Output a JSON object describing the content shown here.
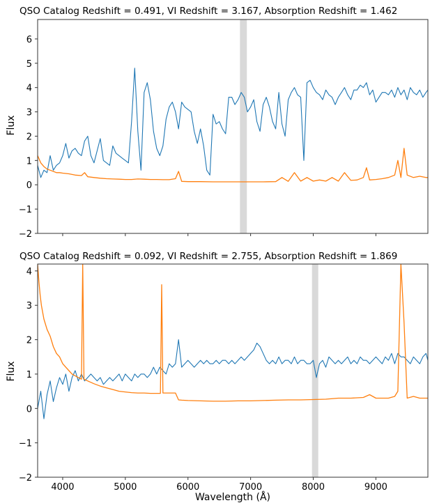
{
  "figure": {
    "xlabel": "Wavelength (Å)",
    "colors": {
      "flux": "#1f77b4",
      "error": "#ff7f0e",
      "band": "#d9d9d9"
    }
  },
  "chart_data": [
    {
      "type": "line",
      "title": "QSO Catalog Redshift = 0.491,   VI Redshift = 3.167,   Absorption Redshift = 1.462",
      "xlabel": "",
      "ylabel": "Flux",
      "xlim": [
        3600,
        9830
      ],
      "ylim": [
        -2,
        6.8
      ],
      "yticks": [
        -2,
        -1,
        0,
        1,
        2,
        3,
        4,
        5,
        6
      ],
      "xticks": [
        4000,
        5000,
        6000,
        7000,
        8000,
        9000
      ],
      "x_ticklabels_shown": false,
      "grid": false,
      "shaded_band": [
        6830,
        6940
      ],
      "series": [
        {
          "color": "#1f77b4",
          "x": [
            3600,
            3650,
            3700,
            3750,
            3800,
            3850,
            3900,
            3950,
            4000,
            4050,
            4100,
            4150,
            4200,
            4250,
            4300,
            4350,
            4400,
            4450,
            4500,
            4550,
            4600,
            4650,
            4700,
            4750,
            4800,
            4850,
            4900,
            4950,
            5000,
            5050,
            5100,
            5150,
            5200,
            5250,
            5300,
            5350,
            5400,
            5450,
            5500,
            5550,
            5600,
            5650,
            5700,
            5750,
            5800,
            5850,
            5900,
            5950,
            6000,
            6050,
            6100,
            6150,
            6200,
            6250,
            6300,
            6350,
            6400,
            6450,
            6500,
            6550,
            6600,
            6650,
            6700,
            6750,
            6800,
            6850,
            6900,
            6950,
            7000,
            7050,
            7100,
            7150,
            7200,
            7250,
            7300,
            7350,
            7400,
            7450,
            7500,
            7550,
            7600,
            7650,
            7700,
            7750,
            7800,
            7850,
            7900,
            7950,
            8000,
            8050,
            8100,
            8150,
            8200,
            8250,
            8300,
            8350,
            8400,
            8450,
            8500,
            8550,
            8600,
            8650,
            8700,
            8750,
            8800,
            8850,
            8900,
            8950,
            9000,
            9050,
            9100,
            9150,
            9200,
            9250,
            9300,
            9350,
            9400,
            9450,
            9500,
            9550,
            9600,
            9650,
            9700,
            9750,
            9800,
            9830
          ],
          "y": [
            0.8,
            0.3,
            0.6,
            0.5,
            1.2,
            0.6,
            0.8,
            0.9,
            1.2,
            1.7,
            1.1,
            1.4,
            1.5,
            1.3,
            1.2,
            1.8,
            2.0,
            1.2,
            0.9,
            1.4,
            1.9,
            1.0,
            0.9,
            0.8,
            1.6,
            1.3,
            1.2,
            1.1,
            1.0,
            0.9,
            2.6,
            4.8,
            2.2,
            0.6,
            3.8,
            4.2,
            3.5,
            2.2,
            1.5,
            1.2,
            1.6,
            2.7,
            3.2,
            3.4,
            3.0,
            2.3,
            3.4,
            3.2,
            3.1,
            3.0,
            2.2,
            1.7,
            2.3,
            1.6,
            0.6,
            0.4,
            2.9,
            2.5,
            2.6,
            2.3,
            2.1,
            3.6,
            3.6,
            3.3,
            3.5,
            3.8,
            3.6,
            3.0,
            3.2,
            3.5,
            2.6,
            2.2,
            3.3,
            3.6,
            3.2,
            2.6,
            2.3,
            3.8,
            2.5,
            2.0,
            3.5,
            3.8,
            4.0,
            3.7,
            3.6,
            1.0,
            4.2,
            4.3,
            4.0,
            3.8,
            3.7,
            3.5,
            3.9,
            3.7,
            3.6,
            3.3,
            3.6,
            3.8,
            4.0,
            3.7,
            3.5,
            3.9,
            3.9,
            4.1,
            4.0,
            4.2,
            3.7,
            3.9,
            3.4,
            3.6,
            3.8,
            3.8,
            3.7,
            3.9,
            3.6,
            4.0,
            3.7,
            3.9,
            3.5,
            4.0,
            3.8,
            3.7,
            3.9,
            3.6,
            3.8,
            3.9
          ]
        },
        {
          "color": "#ff7f0e",
          "x": [
            3600,
            3650,
            3700,
            3750,
            3800,
            3850,
            3900,
            3950,
            4000,
            4100,
            4200,
            4300,
            4350,
            4400,
            4500,
            4600,
            4700,
            4800,
            4900,
            5000,
            5100,
            5200,
            5300,
            5400,
            5500,
            5600,
            5700,
            5800,
            5850,
            5900,
            6000,
            6200,
            6400,
            6600,
            6800,
            7000,
            7200,
            7400,
            7500,
            7600,
            7700,
            7800,
            7900,
            8000,
            8100,
            8200,
            8300,
            8400,
            8500,
            8600,
            8700,
            8800,
            8850,
            8900,
            9000,
            9100,
            9200,
            9300,
            9350,
            9400,
            9450,
            9500,
            9600,
            9700,
            9800,
            9830
          ],
          "y": [
            1.2,
            0.9,
            0.75,
            0.65,
            0.6,
            0.55,
            0.5,
            0.5,
            0.48,
            0.45,
            0.4,
            0.38,
            0.5,
            0.33,
            0.3,
            0.27,
            0.25,
            0.24,
            0.23,
            0.22,
            0.22,
            0.24,
            0.23,
            0.22,
            0.22,
            0.21,
            0.21,
            0.25,
            0.55,
            0.14,
            0.13,
            0.13,
            0.12,
            0.12,
            0.12,
            0.12,
            0.12,
            0.13,
            0.3,
            0.14,
            0.5,
            0.15,
            0.3,
            0.15,
            0.2,
            0.15,
            0.3,
            0.15,
            0.5,
            0.18,
            0.2,
            0.3,
            0.7,
            0.2,
            0.22,
            0.25,
            0.3,
            0.4,
            1.0,
            0.3,
            1.5,
            0.4,
            0.3,
            0.35,
            0.3,
            0.3
          ]
        }
      ]
    },
    {
      "type": "line",
      "title": "QSO Catalog Redshift = 0.092,   VI Redshift = 2.755,   Absorption Redshift = 1.869",
      "xlabel": "Wavelength (Å)",
      "ylabel": "Flux",
      "xlim": [
        3600,
        9830
      ],
      "ylim": [
        -2,
        4.2
      ],
      "yticks": [
        -2,
        -1,
        0,
        1,
        2,
        3,
        4
      ],
      "xticks": [
        4000,
        5000,
        6000,
        7000,
        8000,
        9000
      ],
      "xticklabels": [
        "4000",
        "5000",
        "6000",
        "7000",
        "8000",
        "9000"
      ],
      "grid": false,
      "shaded_band": [
        7980,
        8080
      ],
      "series": [
        {
          "color": "#1f77b4",
          "x": [
            3600,
            3650,
            3700,
            3750,
            3800,
            3850,
            3900,
            3950,
            4000,
            4050,
            4100,
            4150,
            4200,
            4250,
            4300,
            4350,
            4400,
            4450,
            4500,
            4550,
            4600,
            4650,
            4700,
            4750,
            4800,
            4850,
            4900,
            4950,
            5000,
            5050,
            5100,
            5150,
            5200,
            5250,
            5300,
            5350,
            5400,
            5450,
            5500,
            5550,
            5600,
            5650,
            5700,
            5750,
            5800,
            5850,
            5900,
            5950,
            6000,
            6050,
            6100,
            6150,
            6200,
            6250,
            6300,
            6350,
            6400,
            6450,
            6500,
            6550,
            6600,
            6650,
            6700,
            6750,
            6800,
            6850,
            6900,
            6950,
            7000,
            7050,
            7100,
            7150,
            7200,
            7250,
            7300,
            7350,
            7400,
            7450,
            7500,
            7550,
            7600,
            7650,
            7700,
            7750,
            7800,
            7850,
            7900,
            7950,
            8000,
            8050,
            8100,
            8150,
            8200,
            8250,
            8300,
            8350,
            8400,
            8450,
            8500,
            8550,
            8600,
            8650,
            8700,
            8750,
            8800,
            8850,
            8900,
            8950,
            9000,
            9050,
            9100,
            9150,
            9200,
            9250,
            9300,
            9350,
            9400,
            9450,
            9500,
            9550,
            9600,
            9650,
            9700,
            9750,
            9800,
            9830
          ],
          "y": [
            0.0,
            0.5,
            -0.3,
            0.4,
            0.8,
            0.2,
            0.6,
            0.9,
            0.7,
            1.0,
            0.5,
            0.9,
            1.1,
            0.8,
            1.0,
            0.8,
            0.9,
            1.0,
            0.9,
            0.8,
            0.9,
            0.7,
            0.8,
            0.9,
            0.8,
            0.9,
            1.0,
            0.8,
            1.0,
            0.9,
            0.8,
            1.0,
            0.9,
            1.0,
            1.0,
            0.9,
            1.0,
            1.2,
            1.0,
            1.2,
            1.1,
            1.0,
            1.3,
            1.2,
            1.3,
            2.0,
            1.2,
            1.3,
            1.4,
            1.3,
            1.2,
            1.3,
            1.4,
            1.3,
            1.4,
            1.3,
            1.3,
            1.4,
            1.3,
            1.4,
            1.4,
            1.3,
            1.4,
            1.3,
            1.4,
            1.5,
            1.4,
            1.5,
            1.6,
            1.7,
            1.9,
            1.8,
            1.6,
            1.4,
            1.3,
            1.4,
            1.3,
            1.5,
            1.3,
            1.4,
            1.4,
            1.3,
            1.5,
            1.3,
            1.4,
            1.4,
            1.3,
            1.3,
            1.4,
            0.9,
            1.3,
            1.4,
            1.2,
            1.5,
            1.4,
            1.3,
            1.4,
            1.3,
            1.4,
            1.5,
            1.3,
            1.4,
            1.3,
            1.5,
            1.4,
            1.4,
            1.3,
            1.4,
            1.5,
            1.4,
            1.3,
            1.5,
            1.4,
            1.6,
            1.3,
            1.6,
            1.5,
            1.5,
            1.4,
            1.3,
            1.5,
            1.4,
            1.3,
            1.5,
            1.6,
            1.4
          ]
        },
        {
          "color": "#ff7f0e",
          "x": [
            3600,
            3620,
            3640,
            3660,
            3700,
            3750,
            3800,
            3850,
            3900,
            3950,
            4000,
            4050,
            4100,
            4150,
            4200,
            4250,
            4300,
            4320,
            4340,
            4400,
            4500,
            4600,
            4700,
            4800,
            4900,
            5000,
            5100,
            5200,
            5300,
            5400,
            5500,
            5560,
            5580,
            5600,
            5700,
            5800,
            5850,
            5900,
            6000,
            6200,
            6400,
            6600,
            6800,
            7000,
            7200,
            7400,
            7600,
            7800,
            8000,
            8200,
            8400,
            8600,
            8800,
            8900,
            9000,
            9200,
            9300,
            9350,
            9400,
            9450,
            9500,
            9600,
            9700,
            9800,
            9830
          ],
          "y": [
            4.2,
            3.7,
            3.3,
            3.0,
            2.6,
            2.3,
            2.1,
            1.8,
            1.6,
            1.5,
            1.3,
            1.2,
            1.1,
            1.0,
            0.95,
            0.9,
            0.85,
            4.2,
            0.85,
            0.8,
            0.72,
            0.65,
            0.6,
            0.55,
            0.5,
            0.48,
            0.46,
            0.45,
            0.45,
            0.44,
            0.44,
            0.44,
            3.6,
            0.45,
            0.45,
            0.45,
            0.25,
            0.24,
            0.23,
            0.22,
            0.21,
            0.21,
            0.22,
            0.22,
            0.23,
            0.24,
            0.25,
            0.25,
            0.26,
            0.27,
            0.3,
            0.3,
            0.32,
            0.4,
            0.3,
            0.3,
            0.35,
            0.5,
            4.2,
            2.5,
            0.3,
            0.35,
            0.3,
            0.3,
            0.3
          ]
        }
      ]
    }
  ]
}
